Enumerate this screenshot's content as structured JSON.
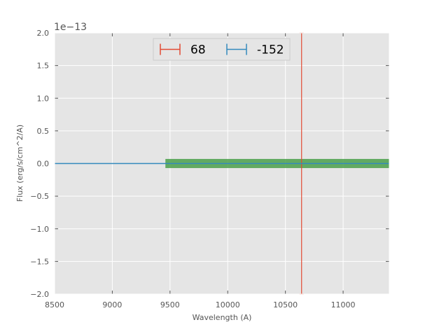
{
  "chart_data": {
    "type": "line",
    "title": "",
    "xlabel": "Wavelength (A)",
    "ylabel": "Flux (erg/s/cm^2/A)",
    "y_offset_label": "1e−13",
    "xlim": [
      8500,
      11400
    ],
    "ylim": [
      -2.0,
      2.0
    ],
    "grid": true,
    "legend_placement": "upper center",
    "x_ticks": [
      8500,
      9000,
      9500,
      10000,
      10500,
      11000
    ],
    "x_tick_labels": [
      "8500",
      "9000",
      "9500",
      "10000",
      "10500",
      "11000"
    ],
    "y_ticks": [
      -2.0,
      -1.5,
      -1.0,
      -0.5,
      0.0,
      0.5,
      1.0,
      1.5,
      2.0
    ],
    "y_tick_labels": [
      "−2.0",
      "−1.5",
      "−1.0",
      "−0.5",
      "0.0",
      "0.5",
      "1.0",
      "1.5",
      "2.0"
    ],
    "series": [
      {
        "name": "68",
        "color": "#e24a33",
        "kind": "errorbar",
        "x": [
          10640
        ],
        "y": [
          0.0
        ],
        "yerr": [
          2.0
        ]
      },
      {
        "name": "-152",
        "color": "#348abd",
        "kind": "line",
        "x": [
          8500,
          11400
        ],
        "y": [
          0.0,
          0.0
        ]
      }
    ],
    "band": {
      "color": "#4aa04a",
      "x": [
        9460,
        11400
      ],
      "y": [
        -0.07,
        0.07
      ]
    },
    "colors": {
      "plot_background": "#e5e5e5",
      "grid": "#ffffff",
      "legend_background": "#e5e5e5",
      "legend_border": "#cccccc"
    }
  }
}
